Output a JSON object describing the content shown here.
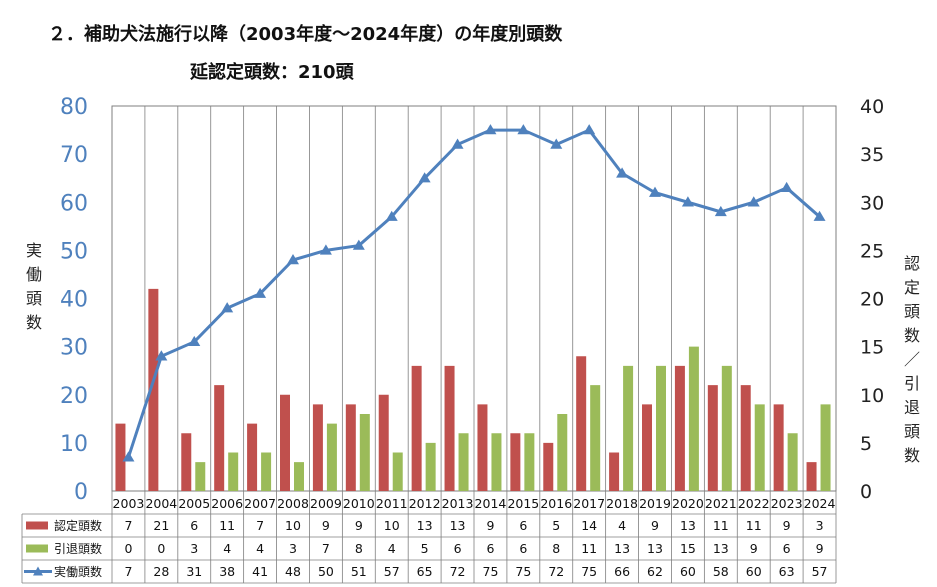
{
  "title": "２．補助犬法施行以降（2003年度～2024年度）の年度別頭数",
  "subtitle": "延認定頭数：210頭",
  "colors": {
    "certified": "#C0504D",
    "retired": "#9BBB59",
    "active": "#4F81BD",
    "left_axis_text": "#4F81BD",
    "grid": "#7f7f7f"
  },
  "chart_data": {
    "type": "bar",
    "categories": [
      "2003",
      "2004",
      "2005",
      "2006",
      "2007",
      "2008",
      "2009",
      "2010",
      "2011",
      "2012",
      "2013",
      "2014",
      "2015",
      "2016",
      "2017",
      "2018",
      "2019",
      "2020",
      "2021",
      "2022",
      "2023",
      "2024"
    ],
    "series": [
      {
        "name": "認定頭数",
        "type": "bar",
        "axis": "right",
        "color": "#C0504D",
        "values": [
          7,
          21,
          6,
          11,
          7,
          10,
          9,
          9,
          10,
          13,
          13,
          9,
          6,
          5,
          14,
          4,
          9,
          13,
          11,
          11,
          9,
          3
        ]
      },
      {
        "name": "引退頭数",
        "type": "bar",
        "axis": "right",
        "color": "#9BBB59",
        "values": [
          0,
          0,
          3,
          4,
          4,
          3,
          7,
          8,
          4,
          5,
          6,
          6,
          6,
          8,
          11,
          13,
          13,
          15,
          13,
          9,
          6,
          9
        ]
      },
      {
        "name": "実働頭数",
        "type": "line",
        "axis": "left",
        "color": "#4F81BD",
        "marker": "triangle",
        "values": [
          7,
          28,
          31,
          38,
          41,
          48,
          50,
          51,
          57,
          65,
          72,
          75,
          75,
          72,
          75,
          66,
          62,
          60,
          58,
          60,
          63,
          57
        ]
      }
    ],
    "ylabel_left": "実働頭数",
    "ylabel_right": "認定頭数／引退頭数",
    "ylim_left": [
      0,
      80
    ],
    "ylim_right": [
      0,
      40
    ],
    "yticks_left": [
      "0",
      "10",
      "20",
      "30",
      "40",
      "50",
      "60",
      "70",
      "80"
    ],
    "yticks_right": [
      "0",
      "5",
      "10",
      "15",
      "20",
      "25",
      "30",
      "35",
      "40"
    ],
    "grid": "vertical category separators",
    "legend": "data table below chart"
  }
}
